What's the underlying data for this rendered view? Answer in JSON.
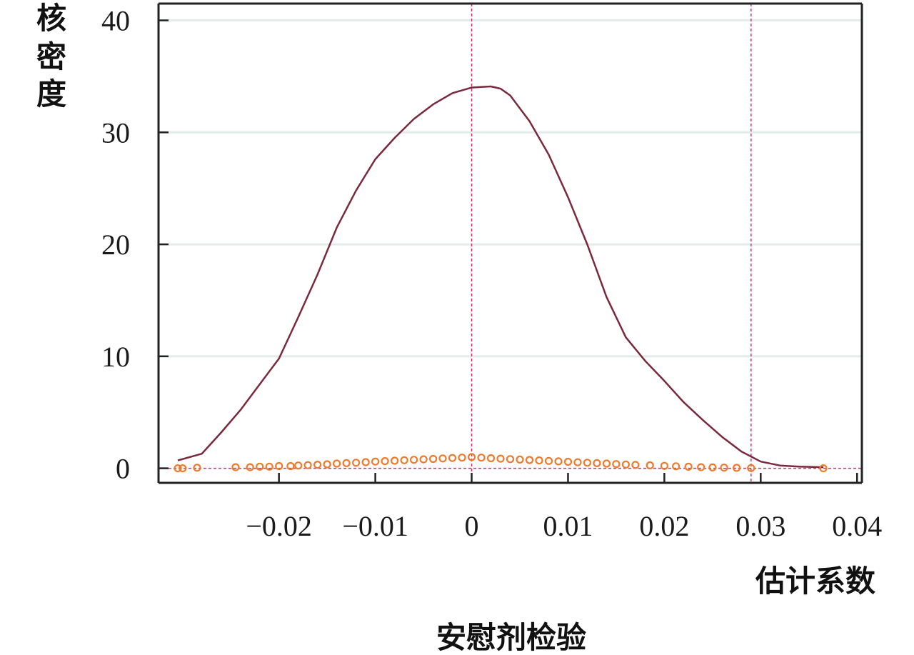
{
  "chart_data": {
    "type": "line",
    "title": "安慰剂检验",
    "xlabel": "估计系数",
    "ylabel": "核密度",
    "xlim": [
      -0.0325,
      0.0405
    ],
    "ylim": [
      -1.3,
      41.5
    ],
    "x_ticks": [
      {
        "value": -0.02,
        "label": "−0.02"
      },
      {
        "value": -0.01,
        "label": "−0.01"
      },
      {
        "value": 0,
        "label": "0"
      },
      {
        "value": 0.01,
        "label": "0.01"
      },
      {
        "value": 0.02,
        "label": "0.02"
      },
      {
        "value": 0.03,
        "label": "0.03"
      },
      {
        "value": 0.04,
        "label": "0.04"
      }
    ],
    "y_ticks": [
      {
        "value": 0,
        "label": "0"
      },
      {
        "value": 10,
        "label": "10"
      },
      {
        "value": 20,
        "label": "20"
      },
      {
        "value": 30,
        "label": "30"
      },
      {
        "value": 40,
        "label": "40"
      }
    ],
    "grid": {
      "horizontal": true,
      "vertical": false
    },
    "reference_lines": {
      "vertical": [
        0,
        0.029
      ],
      "horizontal": [
        0
      ]
    },
    "colors": {
      "density_line": "#7a2a3e",
      "points": "#f07a2c",
      "reference": "#d0306a",
      "grid": "#e4ecea",
      "axis": "#222222"
    },
    "series": [
      {
        "kind": "density",
        "x": [
          -0.0305,
          -0.028,
          -0.026,
          -0.024,
          -0.022,
          -0.02,
          -0.018,
          -0.016,
          -0.014,
          -0.012,
          -0.01,
          -0.008,
          -0.006,
          -0.004,
          -0.002,
          0.0,
          0.001,
          0.002,
          0.003,
          0.004,
          0.006,
          0.008,
          0.01,
          0.012,
          0.014,
          0.016,
          0.018,
          0.02,
          0.022,
          0.024,
          0.026,
          0.028,
          0.03,
          0.032,
          0.034,
          0.0365
        ],
        "y": [
          0.7,
          1.3,
          3.2,
          5.2,
          7.5,
          9.8,
          13.5,
          17.3,
          21.5,
          24.8,
          27.6,
          29.5,
          31.2,
          32.5,
          33.5,
          34.0,
          34.05,
          34.1,
          33.9,
          33.3,
          31.0,
          28.0,
          24.2,
          20.0,
          15.3,
          11.7,
          9.6,
          7.8,
          5.9,
          4.3,
          2.8,
          1.5,
          0.6,
          0.25,
          0.15,
          0.1
        ]
      },
      {
        "kind": "points",
        "x": [
          -0.0305,
          -0.03,
          -0.0285,
          -0.0245,
          -0.023,
          -0.022,
          -0.021,
          -0.02,
          -0.0188,
          -0.018,
          -0.017,
          -0.016,
          -0.015,
          -0.014,
          -0.013,
          -0.012,
          -0.011,
          -0.01,
          -0.009,
          -0.008,
          -0.007,
          -0.006,
          -0.005,
          -0.004,
          -0.003,
          -0.002,
          -0.001,
          0.0,
          0.001,
          0.002,
          0.003,
          0.004,
          0.005,
          0.006,
          0.007,
          0.008,
          0.009,
          0.01,
          0.011,
          0.012,
          0.013,
          0.014,
          0.015,
          0.016,
          0.017,
          0.0185,
          0.02,
          0.0212,
          0.0225,
          0.0238,
          0.025,
          0.0262,
          0.0275,
          0.029,
          0.0365
        ],
        "y": [
          0.0,
          0.0,
          0.05,
          0.1,
          0.1,
          0.15,
          0.15,
          0.2,
          0.2,
          0.25,
          0.28,
          0.32,
          0.36,
          0.42,
          0.46,
          0.5,
          0.55,
          0.6,
          0.64,
          0.68,
          0.72,
          0.76,
          0.8,
          0.84,
          0.88,
          0.92,
          0.95,
          1.0,
          0.95,
          0.9,
          0.86,
          0.82,
          0.78,
          0.74,
          0.7,
          0.66,
          0.62,
          0.58,
          0.54,
          0.5,
          0.46,
          0.42,
          0.38,
          0.34,
          0.3,
          0.26,
          0.22,
          0.18,
          0.14,
          0.1,
          0.08,
          0.06,
          0.04,
          0.02,
          0.0
        ]
      }
    ]
  }
}
